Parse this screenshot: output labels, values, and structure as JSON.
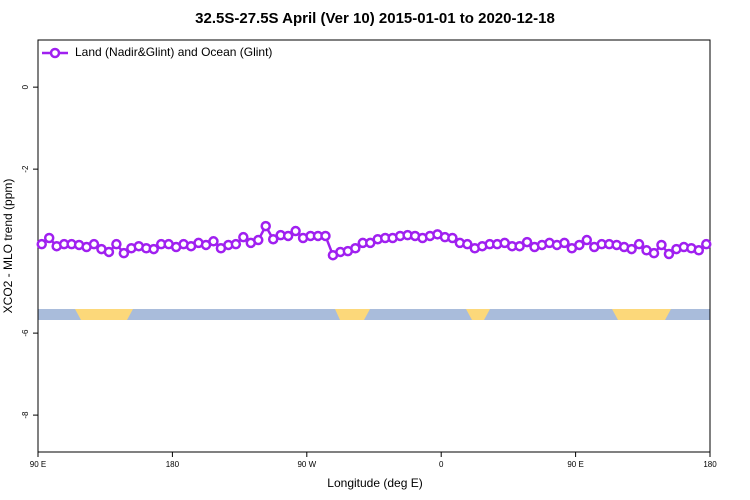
{
  "chart_data": {
    "type": "line",
    "title": "32.5S-27.5S April (Ver 10)   2015-01-01 to 2020-12-18",
    "x_label": "Longitude (deg E)",
    "y_label": "XCO2 - MLO trend (ppm)",
    "xlim": [
      90,
      540
    ],
    "xticks": [
      {
        "value": 90,
        "label": "90 E"
      },
      {
        "value": 180,
        "label": "180"
      },
      {
        "value": 270,
        "label": "90 W"
      },
      {
        "value": 360,
        "label": "0"
      },
      {
        "value": 450,
        "label": "90 E"
      },
      {
        "value": 540,
        "label": "180"
      }
    ],
    "ylim": [
      -8.9,
      1.15
    ],
    "yticks": [
      0,
      -2,
      -6,
      -8
    ],
    "legend": "top-left",
    "x": [
      92.5,
      97.5,
      102.5,
      107.5,
      112.5,
      117.5,
      122.5,
      127.5,
      132.5,
      137.5,
      142.5,
      147.5,
      152.5,
      157.5,
      162.5,
      167.5,
      172.5,
      177.5,
      182.5,
      187.5,
      192.5,
      197.5,
      202.5,
      207.5,
      212.5,
      217.5,
      222.5,
      227.5,
      232.5,
      237.5,
      242.5,
      247.5,
      252.5,
      257.5,
      262.5,
      267.5,
      272.5,
      277.5,
      282.5,
      287.5,
      292.5,
      297.5,
      302.5,
      307.5,
      312.5,
      317.5,
      322.5,
      327.5,
      332.5,
      337.5,
      342.5,
      347.5,
      352.5,
      357.5,
      362.5,
      367.5,
      372.5,
      377.5,
      382.5,
      387.5,
      392.5,
      397.5,
      402.5,
      407.5,
      412.5,
      417.5,
      422.5,
      427.5,
      432.5,
      437.5,
      442.5,
      447.5,
      452.5,
      457.5,
      462.5,
      467.5,
      472.5,
      477.5,
      482.5,
      487.5,
      492.5,
      497.5,
      502.5,
      507.5,
      512.5,
      517.5,
      522.5,
      527.5,
      532.5,
      537.5
    ],
    "series": [
      {
        "name": "Land (Nadir&Glint) and Ocean (Glint)",
        "color": "#a020f0",
        "values": [
          -3.83,
          -3.68,
          -3.88,
          -3.83,
          -3.83,
          -3.85,
          -3.9,
          -3.83,
          -3.95,
          -4.02,
          -3.83,
          -4.05,
          -3.93,
          -3.88,
          -3.93,
          -3.95,
          -3.83,
          -3.83,
          -3.9,
          -3.83,
          -3.88,
          -3.8,
          -3.85,
          -3.76,
          -3.93,
          -3.85,
          -3.83,
          -3.66,
          -3.8,
          -3.73,
          -3.39,
          -3.71,
          -3.61,
          -3.63,
          -3.51,
          -3.68,
          -3.63,
          -3.63,
          -3.63,
          -4.1,
          -4.02,
          -4.0,
          -3.93,
          -3.8,
          -3.8,
          -3.71,
          -3.68,
          -3.68,
          -3.63,
          -3.61,
          -3.63,
          -3.68,
          -3.63,
          -3.59,
          -3.66,
          -3.68,
          -3.8,
          -3.83,
          -3.93,
          -3.88,
          -3.83,
          -3.83,
          -3.8,
          -3.88,
          -3.88,
          -3.78,
          -3.9,
          -3.85,
          -3.8,
          -3.85,
          -3.8,
          -3.93,
          -3.85,
          -3.73,
          -3.9,
          -3.83,
          -3.83,
          -3.85,
          -3.9,
          -3.95,
          -3.83,
          -3.98,
          -4.05,
          -3.85,
          -4.07,
          -3.95,
          -3.9,
          -3.93,
          -3.98,
          -3.83
        ]
      }
    ]
  }
}
